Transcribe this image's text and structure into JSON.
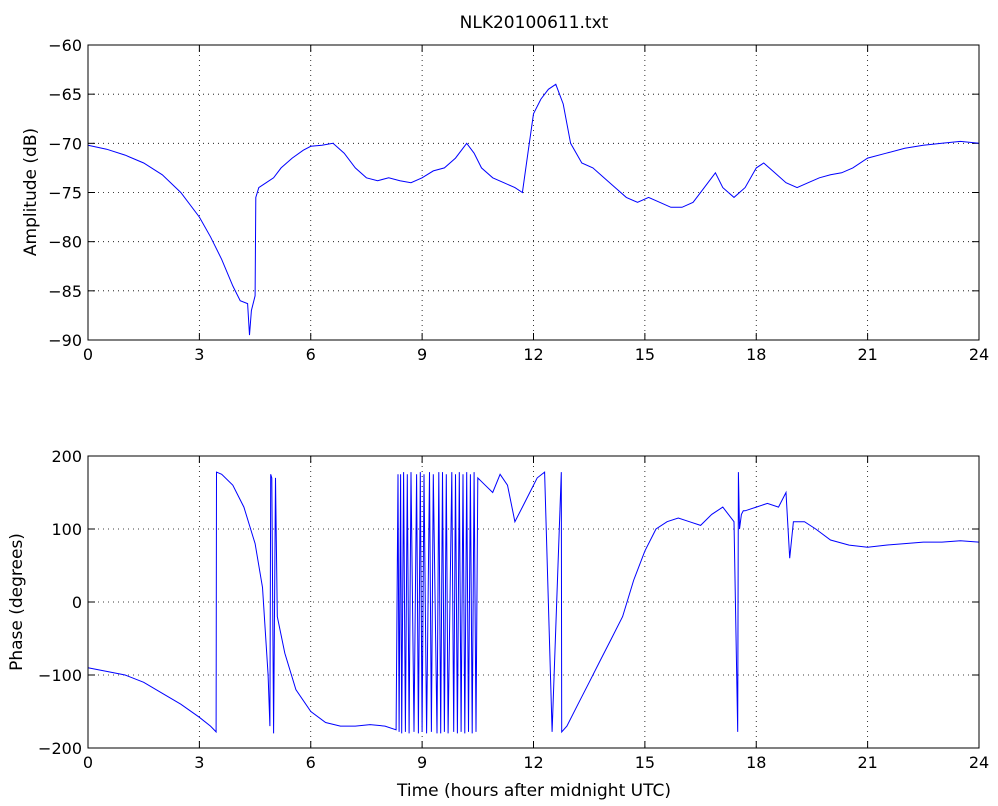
{
  "title": "NLK20100611.txt",
  "line_color": "#0000ff",
  "chart_data": [
    {
      "type": "line",
      "title": "NLK20100611.txt",
      "xlabel": "",
      "ylabel": "Amplitude (dB)",
      "xlim": [
        0,
        24
      ],
      "ylim": [
        -90,
        -60
      ],
      "xticks": [
        0,
        3,
        6,
        9,
        12,
        15,
        18,
        21,
        24
      ],
      "xtick_labels": [
        "0",
        "3",
        "6",
        "9",
        "12",
        "15",
        "18",
        "21",
        "24"
      ],
      "yticks": [
        -90,
        -85,
        -80,
        -75,
        -70,
        -65,
        -60
      ],
      "ytick_labels": [
        "−90",
        "−85",
        "−80",
        "−75",
        "−70",
        "−65",
        "−60"
      ],
      "grid": true,
      "series": [
        {
          "color": "#0000ff",
          "x": [
            0,
            0.5,
            1,
            1.5,
            2,
            2.5,
            3,
            3.3,
            3.6,
            3.9,
            4.1,
            4.3,
            4.35,
            4.4,
            4.5,
            4.52,
            4.6,
            4.8,
            5,
            5.2,
            5.5,
            5.8,
            6,
            6.3,
            6.6,
            6.9,
            7.2,
            7.5,
            7.8,
            8.1,
            8.4,
            8.7,
            9,
            9.3,
            9.6,
            9.9,
            10.2,
            10.4,
            10.6,
            10.9,
            11.2,
            11.5,
            11.7,
            11.85,
            12.0,
            12.2,
            12.4,
            12.6,
            12.8,
            13.0,
            13.3,
            13.6,
            13.9,
            14.2,
            14.5,
            14.8,
            15.1,
            15.4,
            15.7,
            16.0,
            16.3,
            16.6,
            16.9,
            17.1,
            17.4,
            17.7,
            18.0,
            18.2,
            18.5,
            18.8,
            19.1,
            19.4,
            19.7,
            20.0,
            20.3,
            20.6,
            21.0,
            21.5,
            22,
            22.5,
            23,
            23.5,
            24
          ],
          "y": [
            -70.2,
            -70.6,
            -71.2,
            -72.0,
            -73.2,
            -75.0,
            -77.5,
            -79.5,
            -81.8,
            -84.5,
            -86,
            -86.3,
            -89.5,
            -87,
            -85.5,
            -75.5,
            -74.5,
            -74,
            -73.5,
            -72.5,
            -71.5,
            -70.7,
            -70.3,
            -70.2,
            -70,
            -71,
            -72.5,
            -73.5,
            -73.8,
            -73.5,
            -73.8,
            -74,
            -73.5,
            -72.8,
            -72.5,
            -71.5,
            -70,
            -71,
            -72.5,
            -73.5,
            -74,
            -74.5,
            -75,
            -71,
            -67,
            -65.5,
            -64.5,
            -64,
            -66,
            -70,
            -72,
            -72.5,
            -73.5,
            -74.5,
            -75.5,
            -76,
            -75.5,
            -76,
            -76.5,
            -76.5,
            -76,
            -74.5,
            -73,
            -74.5,
            -75.5,
            -74.5,
            -72.5,
            -72,
            -73,
            -74,
            -74.5,
            -74,
            -73.5,
            -73.2,
            -73,
            -72.5,
            -71.5,
            -71,
            -70.5,
            -70.2,
            -70,
            -69.8,
            -70
          ]
        }
      ]
    },
    {
      "type": "line",
      "title": "",
      "xlabel": "Time (hours after midnight UTC)",
      "ylabel": "Phase (degrees)",
      "xlim": [
        0,
        24
      ],
      "ylim": [
        -200,
        200
      ],
      "xticks": [
        0,
        3,
        6,
        9,
        12,
        15,
        18,
        21,
        24
      ],
      "xtick_labels": [
        "0",
        "3",
        "6",
        "9",
        "12",
        "15",
        "18",
        "21",
        "24"
      ],
      "yticks": [
        -200,
        -100,
        0,
        100,
        200
      ],
      "ytick_labels": [
        "−200",
        "−100",
        "0",
        "100",
        "200"
      ],
      "grid": true,
      "series": [
        {
          "color": "#0000ff",
          "x": [
            0,
            0.5,
            1,
            1.5,
            2,
            2.5,
            3,
            3.3,
            3.45,
            3.46,
            3.6,
            3.9,
            4.2,
            4.5,
            4.7,
            4.85,
            4.9,
            4.92,
            4.95,
            5.0,
            5.05,
            5.1,
            5.3,
            5.6,
            6.0,
            6.4,
            6.8,
            7.2,
            7.6,
            8.0,
            8.3,
            8.35,
            8.38,
            8.42,
            8.45,
            8.5,
            8.55,
            8.6,
            8.65,
            8.7,
            8.78,
            8.85,
            8.9,
            8.95,
            9.0,
            9.05,
            9.12,
            9.2,
            9.25,
            9.3,
            9.4,
            9.45,
            9.5,
            9.55,
            9.6,
            9.65,
            9.7,
            9.8,
            9.85,
            9.9,
            9.95,
            10.0,
            10.05,
            10.1,
            10.15,
            10.2,
            10.25,
            10.3,
            10.35,
            10.4,
            10.45,
            10.5,
            10.7,
            10.9,
            11.1,
            11.3,
            11.5,
            11.7,
            11.9,
            12.1,
            12.3,
            12.5,
            12.75,
            12.76,
            12.9,
            13.2,
            13.5,
            13.8,
            14.1,
            14.4,
            14.7,
            15.0,
            15.3,
            15.6,
            15.9,
            16.2,
            16.5,
            16.8,
            17.1,
            17.4,
            17.5,
            17.52,
            17.55,
            17.6,
            17.65,
            17.7,
            18.0,
            18.3,
            18.6,
            18.8,
            18.9,
            19.0,
            19.3,
            19.6,
            20.0,
            20.5,
            21,
            21.5,
            22,
            22.5,
            23,
            23.5,
            24
          ],
          "y": [
            -90,
            -95,
            -100,
            -110,
            -125,
            -140,
            -158,
            -170,
            -178,
            178,
            175,
            160,
            130,
            80,
            20,
            -100,
            -170,
            175,
            170,
            -180,
            170,
            -20,
            -70,
            -120,
            -150,
            -165,
            -170,
            -170,
            -168,
            -170,
            -175,
            175,
            -178,
            175,
            -180,
            178,
            -178,
            175,
            -180,
            178,
            -178,
            175,
            -180,
            178,
            -178,
            175,
            -180,
            178,
            -178,
            175,
            -180,
            178,
            -180,
            178,
            -178,
            175,
            -180,
            178,
            -178,
            175,
            -180,
            178,
            -178,
            175,
            -180,
            178,
            -178,
            175,
            -180,
            178,
            -178,
            170,
            160,
            150,
            175,
            160,
            110,
            130,
            150,
            170,
            178,
            -178,
            178,
            -178,
            -170,
            -140,
            -110,
            -80,
            -50,
            -20,
            30,
            70,
            100,
            110,
            115,
            110,
            105,
            120,
            130,
            110,
            -178,
            178,
            100,
            120,
            125,
            125,
            130,
            135,
            130,
            150,
            60,
            110,
            110,
            100,
            85,
            78,
            75,
            78,
            80,
            82,
            82,
            84,
            82
          ]
        }
      ]
    }
  ]
}
